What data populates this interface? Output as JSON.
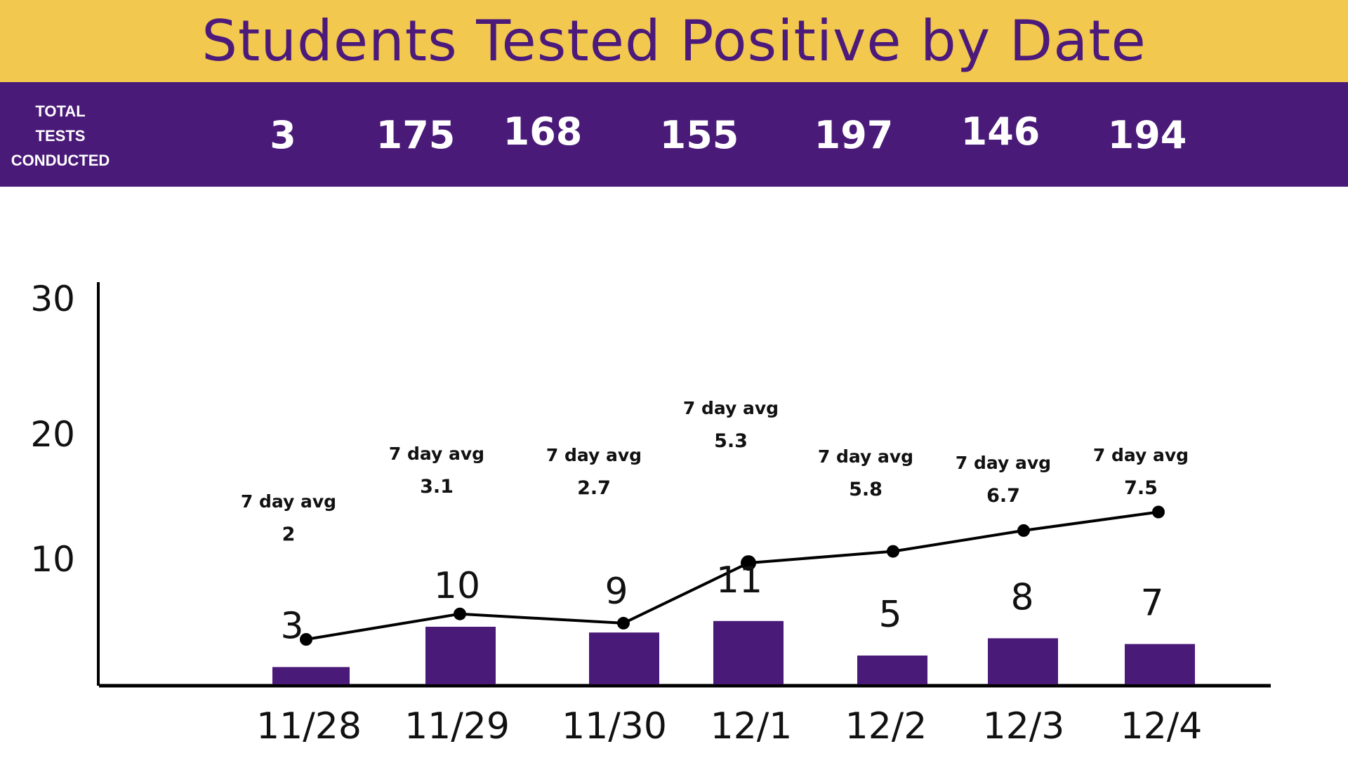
{
  "title": "Students Tested Positive by Date",
  "tests_row": {
    "label_lines": [
      "TOTAL",
      "TESTS",
      "CONDUCTED"
    ],
    "counts": [
      "3",
      "175",
      "168",
      "155",
      "197",
      "146",
      "194"
    ]
  },
  "colors": {
    "title_band": "#f3c84f",
    "title_text": "#4c1a7a",
    "tests_band": "#4a1a78",
    "bar": "#4a1a78",
    "line": "#000000"
  },
  "chart_data": {
    "type": "bar",
    "categories": [
      "11/28",
      "11/29",
      "11/30",
      "12/1",
      "12/2",
      "12/3",
      "12/4"
    ],
    "series": [
      {
        "name": "",
        "type": "bar",
        "values": [
          3,
          10,
          9,
          11,
          5,
          8,
          7
        ]
      },
      {
        "name": "7 day avg",
        "type": "line",
        "values": [
          2,
          3.1,
          2.7,
          5.3,
          5.8,
          6.7,
          7.5
        ]
      }
    ],
    "bar_value_labels": [
      "3",
      "10",
      "9",
      "11",
      "5",
      "8",
      "7"
    ],
    "avg_label": "7 day avg",
    "avg_value_labels": [
      "2",
      "3.1",
      "2.7",
      "5.3",
      "5.8",
      "6.7",
      "7.5"
    ],
    "y_ticks": [
      "10",
      "20",
      "30"
    ],
    "ylim": [
      0,
      30
    ],
    "title": "Students Tested Positive by Date",
    "xlabel": "",
    "ylabel": "",
    "grid": false,
    "legend": "none"
  }
}
